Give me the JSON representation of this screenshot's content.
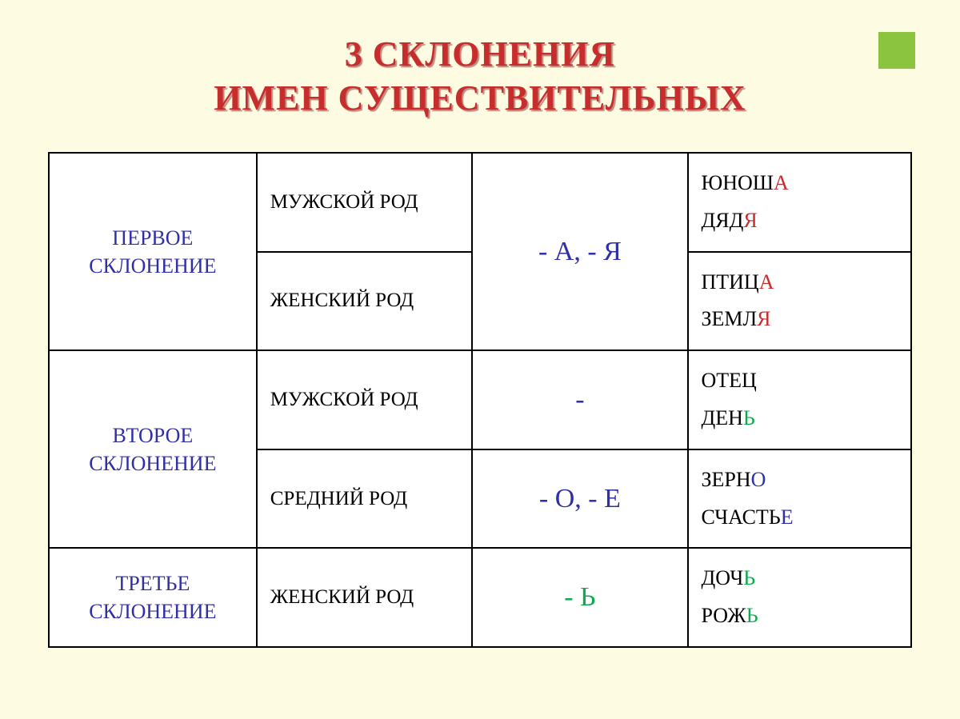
{
  "background_color": "#fdfbe2",
  "corner_square_color": "#8bc43e",
  "title": {
    "line1": "3 СКЛОНЕНИЯ",
    "line2": "ИМЕН СУЩЕСТВИТЕЛЬНЫХ",
    "color": "#c82d2d",
    "fontsize": 44
  },
  "table": {
    "border_color": "#000000",
    "cell_bg": "#ffffff",
    "declension_color": "#2f2fa6",
    "ending_blue": "#2f2fa6",
    "ending_green": "#11a84f",
    "highlight_red": "#c82d2d",
    "highlight_green": "#11a84f",
    "highlight_blue": "#2f2fa6",
    "rows": [
      {
        "declension": "ПЕРВОЕ\nСКЛОНЕНИЕ",
        "subrows": [
          {
            "gender": "МУЖСКОЙ РОД",
            "ending": "- А, - Я",
            "ending_style": "blue",
            "examples": [
              {
                "word": "ЮНОШ",
                "suffix": "А",
                "style": "red"
              },
              {
                "word": "ДЯД",
                "suffix": "Я",
                "style": "red"
              }
            ]
          },
          {
            "gender": "ЖЕНСКИЙ РОД",
            "examples": [
              {
                "word": "ПТИЦ",
                "suffix": "А",
                "style": "red"
              },
              {
                "word": "ЗЕМЛ",
                "suffix": "Я",
                "style": "red"
              }
            ]
          }
        ]
      },
      {
        "declension": "ВТОРОЕ\nСКЛОНЕНИЕ",
        "subrows": [
          {
            "gender": "МУЖСКОЙ РОД",
            "ending": "-",
            "ending_style": "blue",
            "examples": [
              {
                "word": "ОТЕЦ",
                "suffix": "",
                "style": ""
              },
              {
                "word": "ДЕН",
                "suffix": "Ь",
                "style": "green"
              }
            ]
          },
          {
            "gender": "СРЕДНИЙ РОД",
            "ending": "- О, - Е",
            "ending_style": "blue",
            "examples": [
              {
                "word": "ЗЕРН",
                "suffix": "О",
                "style": "blue"
              },
              {
                "word": "СЧАСТЬ",
                "suffix": "Е",
                "style": "blue"
              }
            ]
          }
        ]
      },
      {
        "declension": "ТРЕТЬЕ\nСКЛОНЕНИЕ",
        "subrows": [
          {
            "gender": "ЖЕНСКИЙ РОД",
            "ending": "- Ь",
            "ending_style": "green",
            "examples": [
              {
                "word": "ДОЧ",
                "suffix": "Ь",
                "style": "green"
              },
              {
                "word": "РОЖ",
                "suffix": "Ь",
                "style": "green"
              }
            ]
          }
        ]
      }
    ]
  }
}
